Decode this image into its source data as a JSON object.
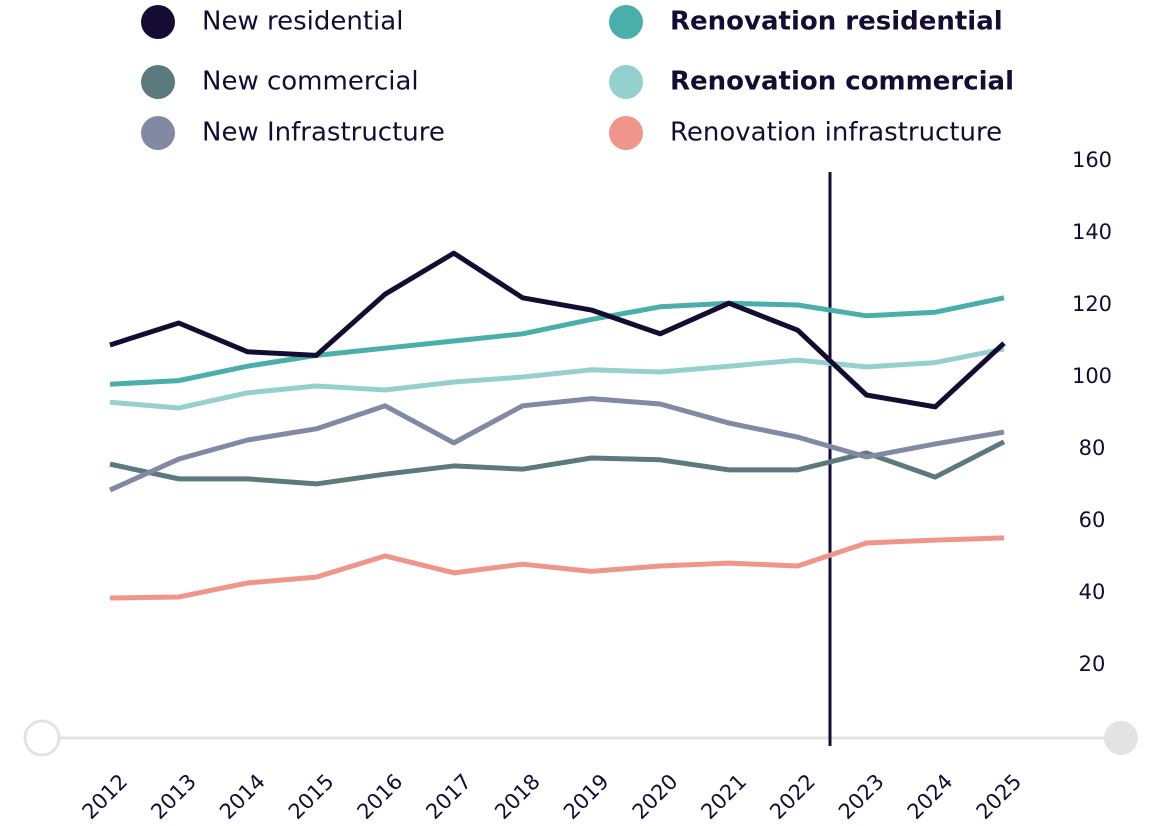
{
  "chart_data": {
    "type": "line",
    "x": [
      "2012",
      "2013",
      "2014",
      "2015",
      "2016",
      "2017",
      "2018",
      "2019",
      "2020",
      "2021",
      "2022",
      "2023",
      "2024",
      "2025"
    ],
    "series": [
      {
        "name": "New residential",
        "color": "#140c33",
        "bold": false,
        "values": [
          108.9,
          115,
          107,
          106,
          123,
          134.4,
          122,
          118.6,
          112,
          120.5,
          113,
          95,
          91.7,
          109.4
        ]
      },
      {
        "name": "New commercial",
        "color": "#5c7a7d",
        "bold": false,
        "values": [
          75.8,
          71.7,
          71.7,
          70.3,
          73,
          75.3,
          74.4,
          77.5,
          77,
          74.2,
          74.2,
          78.9,
          72.2,
          82
        ]
      },
      {
        "name": "New Infrastructure",
        "color": "#8289a3",
        "bold": false,
        "values": [
          68.6,
          77.2,
          82.5,
          85.6,
          92,
          81.7,
          92,
          94,
          92.5,
          87.2,
          83.3,
          77.8,
          81.4,
          84.7
        ]
      },
      {
        "name": "Renovation residential",
        "color": "#4aafaa",
        "bold": true,
        "values": [
          98,
          99,
          103,
          106,
          108,
          110,
          112,
          116,
          119.5,
          120.5,
          120,
          117,
          118,
          122
        ]
      },
      {
        "name": "Renovation commercial",
        "color": "#94d0cd",
        "bold": true,
        "values": [
          93,
          91.4,
          95.6,
          97.5,
          96.4,
          98.6,
          100,
          102,
          101.4,
          103,
          104.7,
          102.8,
          104,
          107.8
        ]
      },
      {
        "name": "Renovation infrastructure",
        "color": "#f0958a",
        "bold": false,
        "values": [
          38.6,
          38.9,
          42.8,
          44.4,
          50.3,
          45.6,
          48,
          46,
          47.5,
          48.3,
          47.5,
          53.9,
          54.7,
          55.3
        ]
      }
    ],
    "ylim": [
      0,
      160
    ],
    "yticks": [
      20,
      40,
      60,
      80,
      100,
      120,
      140,
      160
    ]
  }
}
